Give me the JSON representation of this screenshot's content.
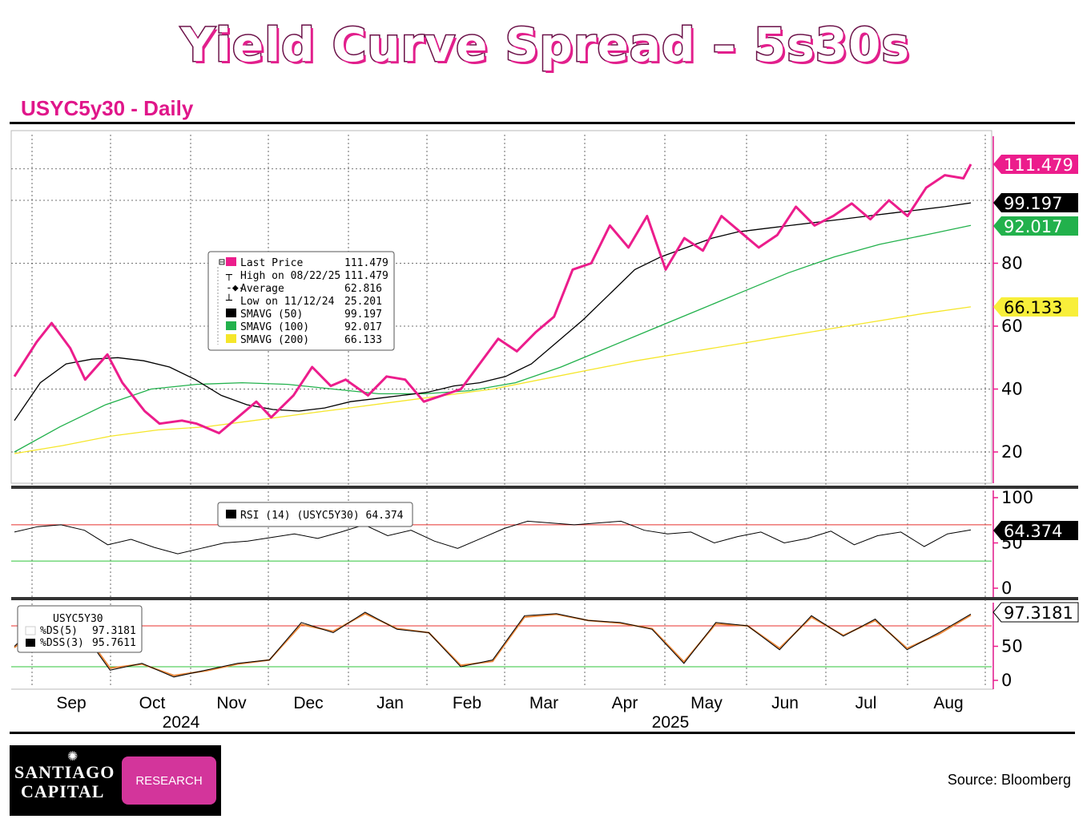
{
  "header": {
    "title": "Yield Curve Spread – 5s30s",
    "subtitle": "USYC5y30 - Daily"
  },
  "footer": {
    "logo_line1": "SANTIAGO",
    "logo_line2": "CAPITAL",
    "logo_box": "RESEARCH",
    "source": "Source: Bloomberg"
  },
  "colors": {
    "price": "#ec1d8c",
    "sma50": "#000000",
    "sma100": "#22b14c",
    "sma200": "#f5e62a",
    "overbought": "#e8312e",
    "oversold": "#2fc43a"
  },
  "legend_main": {
    "rows": [
      {
        "label": "Last Price",
        "value": "111.479"
      },
      {
        "label": "High on 08/22/25",
        "value": "111.479"
      },
      {
        "label": "Average",
        "value": "62.816"
      },
      {
        "label": "Low on 11/12/24",
        "value": "25.201"
      },
      {
        "label": "SMAVG (50)",
        "value": "99.197"
      },
      {
        "label": "SMAVG (100)",
        "value": "92.017"
      },
      {
        "label": "SMAVG (200)",
        "value": "66.133"
      }
    ]
  },
  "legend_rsi": {
    "label": "RSI (14) (USYC5Y30) 64.374"
  },
  "legend_stoch": {
    "title": "USYC5Y30",
    "rows": [
      {
        "label": "%DS(5)",
        "value": "97.3181"
      },
      {
        "label": "%DSS(3)",
        "value": "95.7611"
      }
    ]
  },
  "tags": {
    "last": "111.479",
    "sma50": "99.197",
    "sma100": "92.017",
    "sma200": "66.133",
    "rsi": "64.374",
    "stoch": "97.3181"
  },
  "chart_data": [
    {
      "type": "line",
      "title": "USYC5y30 - Daily",
      "ylim": [
        15,
        120
      ],
      "y_ticks": [
        "20",
        "40",
        "60",
        "80"
      ],
      "x_labels": [
        "Sep",
        "Oct",
        "Nov",
        "Dec",
        "Jan",
        "Feb",
        "Mar",
        "Apr",
        "May",
        "Jun",
        "Jul",
        "Aug"
      ],
      "year_labels": [
        "2024",
        "2025"
      ],
      "x_index": [
        0,
        6,
        10,
        15,
        19,
        25,
        29,
        35,
        39,
        45,
        49,
        55,
        60,
        65,
        69,
        75,
        80,
        85,
        89,
        95,
        100,
        105,
        110,
        115,
        120,
        125,
        130,
        135,
        140,
        145,
        150,
        155,
        160,
        165,
        170,
        175,
        180,
        185,
        190,
        195,
        200,
        205,
        210,
        215,
        220,
        225,
        230,
        235,
        240,
        245,
        250,
        255,
        257
      ],
      "series": [
        {
          "name": "Last Price",
          "values": [
            44,
            55,
            61,
            53,
            43,
            51,
            42,
            33,
            29,
            30,
            29,
            26,
            31,
            36,
            31,
            38,
            47,
            41,
            43,
            38,
            44,
            43,
            36,
            38,
            40,
            48,
            56,
            52,
            58,
            63,
            78,
            80,
            92,
            85,
            95,
            78,
            88,
            84,
            95,
            90,
            85,
            89,
            98,
            92,
            95,
            99,
            94,
            100,
            95,
            104,
            108,
            107,
            111.479
          ]
        },
        {
          "name": "SMAVG (50)",
          "values": [
            30,
            42,
            48,
            49.5,
            50,
            49,
            47,
            43,
            38,
            35,
            33.5,
            33,
            34,
            36,
            37,
            38,
            39,
            41,
            42,
            44,
            48,
            55,
            62,
            70,
            78,
            82,
            85,
            88,
            90,
            91,
            92,
            93,
            94,
            95,
            96,
            97,
            98,
            99.197
          ]
        },
        {
          "name": "SMAVG (100)",
          "values": [
            20,
            28,
            35,
            40,
            41.5,
            42,
            41.5,
            40,
            38.5,
            38.5,
            39.5,
            42,
            47,
            53,
            59,
            65,
            71,
            77,
            82,
            86,
            89,
            92.017
          ]
        },
        {
          "name": "SMAVG (200)",
          "values": [
            19.5,
            22,
            25,
            27,
            28,
            30,
            32,
            34,
            36,
            38,
            40,
            43,
            46,
            49,
            51.5,
            54,
            56.5,
            59,
            61.5,
            64,
            66.133
          ]
        }
      ]
    },
    {
      "type": "line",
      "title": "RSI (14) (USYC5Y30) 64.374",
      "ylim": [
        0,
        100
      ],
      "y_ticks": [
        "0",
        "50",
        "100"
      ],
      "overbought": 70,
      "oversold": 30,
      "series": [
        {
          "name": "RSI (14) (USYC5Y30)",
          "values": [
            62,
            68,
            70,
            64,
            48,
            54,
            45,
            38,
            44,
            50,
            52,
            56,
            60,
            55,
            62,
            70,
            58,
            64,
            52,
            44,
            55,
            66,
            74,
            72,
            70,
            72,
            74,
            64,
            60,
            62,
            50,
            57,
            62,
            50,
            55,
            63,
            48,
            58,
            62,
            46,
            60,
            64.374
          ]
        }
      ]
    },
    {
      "type": "line",
      "title": "USYC5Y30",
      "ylim": [
        0,
        100
      ],
      "y_ticks": [
        "0",
        "50"
      ],
      "overbought": 80,
      "oversold": 20,
      "series": [
        {
          "name": "%DS(5)",
          "values": [
            50,
            95,
            80,
            15,
            25,
            5,
            15,
            25,
            30,
            85,
            70,
            100,
            75,
            70,
            20,
            30,
            95,
            98,
            88,
            85,
            75,
            25,
            85,
            80,
            45,
            95,
            65,
            90,
            45,
            70,
            97.3181
          ]
        },
        {
          "name": "%DSS(3)",
          "values": [
            48,
            92,
            82,
            18,
            24,
            7,
            14,
            24,
            30,
            82,
            72,
            98,
            76,
            70,
            22,
            28,
            93,
            97,
            88,
            84,
            76,
            27,
            83,
            80,
            47,
            93,
            66,
            88,
            47,
            68,
            95.7611
          ]
        }
      ]
    }
  ]
}
